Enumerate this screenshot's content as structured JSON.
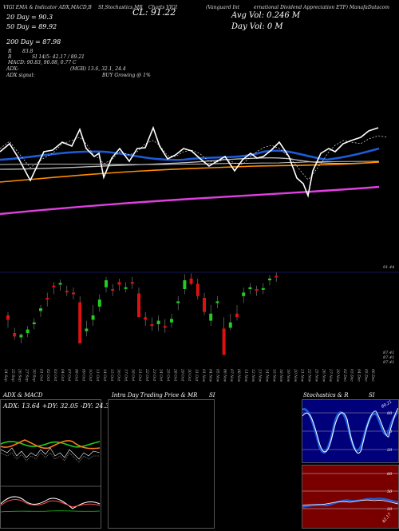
{
  "header": {
    "line1_left": "VIGI EMA & Indicator ADX,MACD,B",
    "line1_mid": "SI,Stochastics,MR",
    "line1_right": "(Vanguard Int",
    "line1_right2": "ernational Dividend Appreciation ETF) ManafaDatacom",
    "line1_ticker_tag": "Charts VIGI",
    "close_label": "CL: 91.22",
    "ema20_label": "20  Day = 90.3",
    "ema50_label": "50  Day = 89.92",
    "ema200_label": "200  Day = 87.98",
    "avg_vol_label": "Avg Vol: 0.246   M",
    "day_vol_label": "Day Vol: 0   M",
    "r_label": "R",
    "r_value": "83.8",
    "b_label": "B",
    "si_label": "SI 14/5: 42.17 / 89.21",
    "macd_label": "MACD: 90.83, 90.08, 0.77 C",
    "adx_label": "ADX:",
    "adx_values": "(MGB) 13.6, 32.1, 24.4",
    "adx_signal_label": "ADX  signal:",
    "adx_signal_value": "BUY Growing @ 1%"
  },
  "colors": {
    "ema20": "#1e5bd6",
    "ema50": "#c0c0c0",
    "ema200": "#ff8c00",
    "longline": "#e040e0",
    "up": "#22cc22",
    "down": "#dd1111"
  },
  "candle_axis": {
    "top_label": "91.44",
    "bottom_labels": [
      "87.41",
      "87.41",
      "87.41"
    ]
  },
  "dates": [
    "24 Sep",
    "25 Sep",
    "26 Sep",
    "27 Sep",
    "30 Sep",
    "01 Oct",
    "02 Oct",
    "03 Oct",
    "04 Oct",
    "07 Oct",
    "08 Oct",
    "09 Oct",
    "10 Oct",
    "11 Oct",
    "14 Oct",
    "15 Oct",
    "16 Oct",
    "17 Oct",
    "18 Oct",
    "21 Oct",
    "22 Oct",
    "23 Oct",
    "24 Oct",
    "25 Oct",
    "28 Oct",
    "29 Oct",
    "30 Oct",
    "31 Oct",
    "01 Nov",
    "04 Nov",
    "05 Nov",
    "06 Nov",
    "07 Nov",
    "08 Nov",
    "11 Nov",
    "12 Nov",
    "13 Nov",
    "14 Nov",
    "15 Nov",
    "18 Nov",
    "19 Nov",
    "20 Nov",
    "21 Nov",
    "22 Nov",
    "25 Nov",
    "26 Nov",
    "27 Nov",
    "29 Nov",
    "02 Dec",
    "03 Dec",
    "04 Dec",
    "05 Dec",
    "06 Dec"
  ],
  "panels": {
    "adx_title": "ADX  & MACD",
    "adx_values": "ADX: 13.64  +DY: 32.05  -DY: 24.36",
    "intraday_title": "Intra  Day Trading Price  & MR",
    "intraday_si": "SI",
    "stoch_title": "Stochastics & R",
    "stoch_si": "SI",
    "stoch_top_value": "89.21",
    "stoch_levels": [
      "80",
      "50",
      "20"
    ],
    "rsi_levels": [
      "80",
      "50",
      "20"
    ],
    "rsi_value": "42.17"
  }
}
